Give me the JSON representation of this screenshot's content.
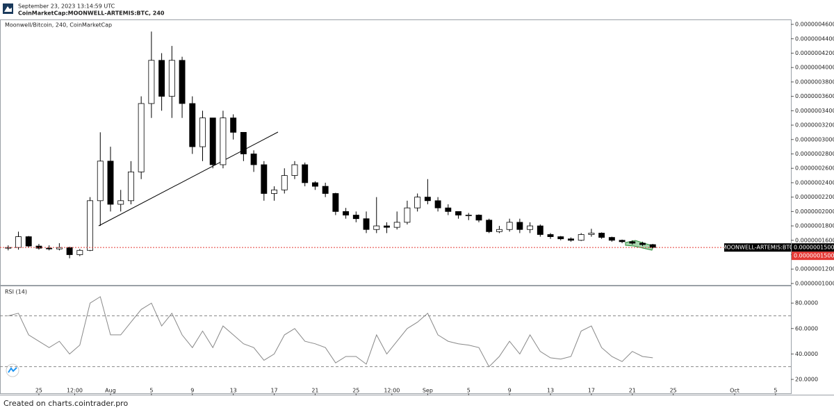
{
  "header": {
    "timestamp": "September 23, 2023 13:14:59 UTC",
    "symbol": "CoinMarketCap:MOONWELL-ARTEMIS:BTC, 240"
  },
  "footer": "Created on charts.cointrader.pro",
  "chart_data": [
    {
      "type": "candlestick",
      "series": [
        {
          "name": "Moonwell/Bitcoin, 240, CoinMarketCap",
          "up_color": "#ffffff",
          "down_color": "#000000",
          "wick_color": "#000000",
          "x": [
            22,
            23,
            24,
            25,
            26,
            27,
            28,
            29,
            30,
            31,
            32,
            33,
            34,
            35,
            36,
            37,
            38,
            39,
            40,
            41,
            42,
            43,
            44,
            45,
            46,
            47,
            48,
            49,
            50,
            51,
            52,
            53,
            54,
            55,
            56,
            57,
            58,
            59,
            60,
            61,
            62,
            63,
            64,
            65,
            66,
            67,
            68,
            69,
            70,
            71,
            72,
            73,
            74,
            75,
            76,
            77,
            78,
            79,
            80,
            81,
            82,
            83,
            84,
            85
          ],
          "open": [
            1.49e-07,
            1.5e-07,
            1.65e-07,
            1.52e-07,
            1.49e-07,
            1.48e-07,
            1.5e-07,
            1.4e-07,
            1.46e-07,
            2.15e-07,
            2.7e-07,
            2.1e-07,
            2.15e-07,
            2.55e-07,
            3.5e-07,
            4.1e-07,
            3.6e-07,
            4.1e-07,
            3.5e-07,
            2.9e-07,
            3.3e-07,
            2.65e-07,
            3.3e-07,
            3.1e-07,
            2.8e-07,
            2.65e-07,
            2.25e-07,
            2.3e-07,
            2.5e-07,
            2.65e-07,
            2.4e-07,
            2.35e-07,
            2.25e-07,
            2e-07,
            1.95e-07,
            1.9e-07,
            1.75e-07,
            1.8e-07,
            1.78e-07,
            1.85e-07,
            2.05e-07,
            2.2e-07,
            2.15e-07,
            2.05e-07,
            2e-07,
            1.95e-07,
            1.95e-07,
            1.88e-07,
            1.72e-07,
            1.75e-07,
            1.85e-07,
            1.75e-07,
            1.8e-07,
            1.68e-07,
            1.65e-07,
            1.62e-07,
            1.6e-07,
            1.68e-07,
            1.7e-07,
            1.64e-07,
            1.6e-07,
            1.58e-07,
            1.56e-07,
            1.54e-07
          ],
          "high": [
            1.53e-07,
            1.72e-07,
            1.66e-07,
            1.55e-07,
            1.53e-07,
            1.56e-07,
            1.51e-07,
            1.48e-07,
            2.2e-07,
            3.1e-07,
            2.9e-07,
            2.3e-07,
            2.7e-07,
            3.6e-07,
            4.5e-07,
            4.2e-07,
            4.3e-07,
            4.15e-07,
            3.6e-07,
            3.4e-07,
            3.3e-07,
            3.4e-07,
            3.35e-07,
            3.1e-07,
            2.85e-07,
            2.7e-07,
            2.35e-07,
            2.6e-07,
            2.7e-07,
            2.68e-07,
            2.42e-07,
            2.4e-07,
            2.26e-07,
            2.05e-07,
            2e-07,
            2e-07,
            2.2e-07,
            1.85e-07,
            2e-07,
            2.15e-07,
            2.25e-07,
            2.45e-07,
            2.2e-07,
            2.1e-07,
            2e-07,
            1.98e-07,
            1.96e-07,
            1.9e-07,
            1.8e-07,
            1.9e-07,
            1.9e-07,
            1.85e-07,
            1.82e-07,
            1.7e-07,
            1.66e-07,
            1.64e-07,
            1.7e-07,
            1.76e-07,
            1.71e-07,
            1.65e-07,
            1.61e-07,
            1.6e-07,
            1.58e-07,
            1.55e-07
          ],
          "low": [
            1.46e-07,
            1.47e-07,
            1.5e-07,
            1.47e-07,
            1.46e-07,
            1.46e-07,
            1.35e-07,
            1.38e-07,
            1.45e-07,
            1.8e-07,
            2e-07,
            2e-07,
            2.1e-07,
            2.45e-07,
            3.3e-07,
            3.4e-07,
            3.3e-07,
            3.3e-07,
            2.8e-07,
            2.7e-07,
            2.6e-07,
            2.6e-07,
            3e-07,
            2.7e-07,
            2.55e-07,
            2.15e-07,
            2.15e-07,
            2.25e-07,
            2.45e-07,
            2.35e-07,
            2.3e-07,
            2.2e-07,
            1.95e-07,
            1.9e-07,
            1.85e-07,
            1.7e-07,
            1.7e-07,
            1.7e-07,
            1.75e-07,
            1.82e-07,
            2e-07,
            2.1e-07,
            2e-07,
            1.95e-07,
            1.9e-07,
            1.88e-07,
            1.85e-07,
            1.7e-07,
            1.7e-07,
            1.72e-07,
            1.7e-07,
            1.7e-07,
            1.65e-07,
            1.62e-07,
            1.6e-07,
            1.58e-07,
            1.59e-07,
            1.65e-07,
            1.62e-07,
            1.58e-07,
            1.56e-07,
            1.54e-07,
            1.52e-07,
            1.49e-07
          ],
          "close": [
            1.5e-07,
            1.65e-07,
            1.52e-07,
            1.49e-07,
            1.48e-07,
            1.5e-07,
            1.4e-07,
            1.46e-07,
            2.15e-07,
            2.7e-07,
            2.1e-07,
            2.15e-07,
            2.55e-07,
            3.5e-07,
            4.1e-07,
            3.6e-07,
            4.1e-07,
            3.5e-07,
            2.9e-07,
            3.3e-07,
            2.65e-07,
            3.3e-07,
            3.1e-07,
            2.8e-07,
            2.65e-07,
            2.25e-07,
            2.3e-07,
            2.5e-07,
            2.65e-07,
            2.4e-07,
            2.35e-07,
            2.25e-07,
            2e-07,
            1.95e-07,
            1.9e-07,
            1.75e-07,
            1.8e-07,
            1.78e-07,
            1.85e-07,
            2.05e-07,
            2.2e-07,
            2.15e-07,
            2.05e-07,
            2e-07,
            1.95e-07,
            1.95e-07,
            1.88e-07,
            1.72e-07,
            1.75e-07,
            1.85e-07,
            1.75e-07,
            1.8e-07,
            1.68e-07,
            1.65e-07,
            1.62e-07,
            1.6e-07,
            1.68e-07,
            1.7e-07,
            1.64e-07,
            1.6e-07,
            1.58e-07,
            1.56e-07,
            1.54e-07,
            1.5e-07
          ]
        }
      ],
      "price_line": {
        "name": "MOONWELL-ARTEMIS:BTC",
        "value": 1.5e-07,
        "label": "0.0000001500",
        "color": "#e53935",
        "label_color": "#e53935"
      },
      "xlim": [
        21.2,
        98.5
      ],
      "ylim": [
        9.8e-08,
        4.668e-07
      ],
      "yticks": [
        {
          "value": 4.6e-07,
          "label": "0.0000004600"
        },
        {
          "value": 4.4e-07,
          "label": "0.0000004400"
        },
        {
          "value": 4.2e-07,
          "label": "0.0000004200"
        },
        {
          "value": 4e-07,
          "label": "0.0000004000"
        },
        {
          "value": 3.8e-07,
          "label": "0.0000003800"
        },
        {
          "value": 3.6e-07,
          "label": "0.0000003600"
        },
        {
          "value": 3.4e-07,
          "label": "0.0000003400"
        },
        {
          "value": 3.2e-07,
          "label": "0.0000003200"
        },
        {
          "value": 3e-07,
          "label": "0.0000003000"
        },
        {
          "value": 2.8e-07,
          "label": "0.0000002800"
        },
        {
          "value": 2.6e-07,
          "label": "0.0000002600"
        },
        {
          "value": 2.4e-07,
          "label": "0.0000002400"
        },
        {
          "value": 2.2e-07,
          "label": "0.0000002200"
        },
        {
          "value": 2e-07,
          "label": "0.0000002000"
        },
        {
          "value": 1.8e-07,
          "label": "0.0000001800"
        },
        {
          "value": 1.6e-07,
          "label": "0.0000001600"
        },
        {
          "value": 1.4e-07,
          "label": "0.0000001400"
        },
        {
          "value": 1.2e-07,
          "label": "0.0000001200"
        },
        {
          "value": 1e-07,
          "label": "0.0000001000"
        }
      ]
    },
    {
      "type": "line",
      "title": "RSI (14)",
      "series": [
        {
          "color": "#888888",
          "x": [
            22,
            23,
            24,
            25,
            26,
            27,
            28,
            29,
            30,
            31,
            32,
            33,
            34,
            35,
            36,
            37,
            38,
            39,
            40,
            41,
            42,
            43,
            44,
            45,
            46,
            47,
            48,
            49,
            50,
            51,
            52,
            53,
            54,
            55,
            56,
            57,
            58,
            59,
            60,
            61,
            62,
            63,
            64,
            65,
            66,
            67,
            68,
            69,
            70,
            71,
            72,
            73,
            74,
            75,
            76,
            77,
            78,
            79,
            80,
            81,
            82,
            83,
            84,
            85
          ],
          "values": [
            70,
            72,
            55,
            50,
            45,
            50,
            40,
            47,
            80,
            85,
            55,
            55,
            65,
            75,
            80,
            62,
            72,
            55,
            45,
            58,
            45,
            62,
            55,
            48,
            45,
            35,
            40,
            55,
            60,
            50,
            48,
            45,
            33,
            38,
            38,
            32,
            55,
            40,
            50,
            60,
            65,
            72,
            55,
            50,
            48,
            47,
            45,
            30,
            38,
            50,
            40,
            55,
            42,
            37,
            36,
            38,
            58,
            62,
            45,
            38,
            34,
            42,
            38,
            37
          ]
        }
      ],
      "hlines": [
        70,
        30
      ],
      "xlim": [
        21.2,
        98.5
      ],
      "ylim": [
        9.6,
        93.2
      ],
      "yticks": [
        {
          "value": 80,
          "label": "80.0000"
        },
        {
          "value": 60,
          "label": "60.0000"
        },
        {
          "value": 40,
          "label": "40.0000"
        },
        {
          "value": 20,
          "label": "20.0000"
        }
      ],
      "xticks": [
        {
          "value": 25,
          "label": "25"
        },
        {
          "value": 28.5,
          "label": "12:00"
        },
        {
          "value": 32,
          "label": "Aug"
        },
        {
          "value": 36,
          "label": "5"
        },
        {
          "value": 40,
          "label": "9"
        },
        {
          "value": 44,
          "label": "13"
        },
        {
          "value": 48,
          "label": "17"
        },
        {
          "value": 52,
          "label": "21"
        },
        {
          "value": 56,
          "label": "25"
        },
        {
          "value": 59.5,
          "label": "12:00"
        },
        {
          "value": 63,
          "label": "Sep"
        },
        {
          "value": 67,
          "label": "5"
        },
        {
          "value": 71,
          "label": "9"
        },
        {
          "value": 75,
          "label": "13"
        },
        {
          "value": 79,
          "label": "17"
        },
        {
          "value": 83,
          "label": "21"
        },
        {
          "value": 87,
          "label": "25"
        },
        {
          "value": 93,
          "label": "Oct"
        },
        {
          "value": 97,
          "label": "5"
        }
      ]
    }
  ]
}
